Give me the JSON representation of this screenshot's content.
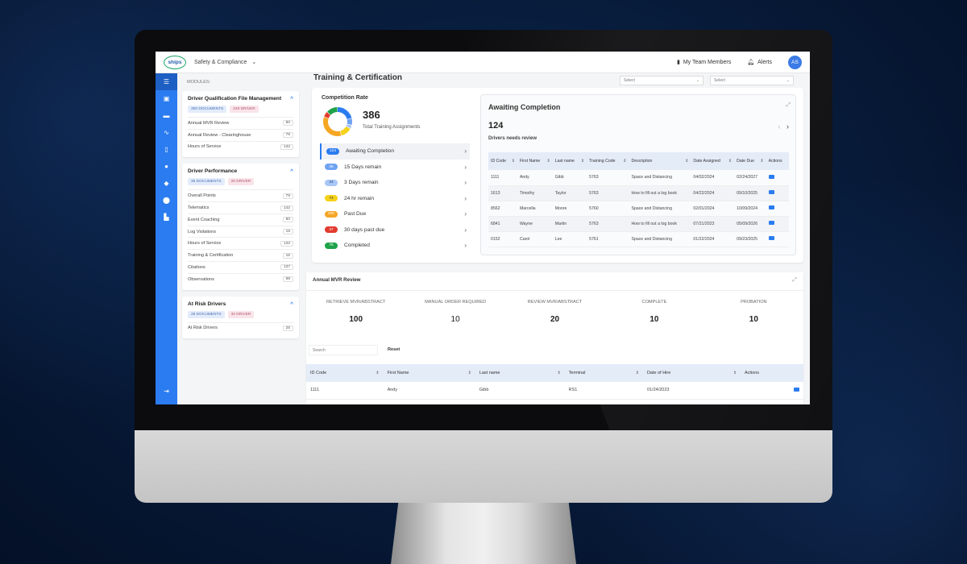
{
  "topbar": {
    "logo_text": "ships",
    "app_select": "Safety & Compliance",
    "my_team": "My Team Members",
    "alerts": "Alerts",
    "avatar": "AS"
  },
  "sidebar": {
    "modules_label": "MODULES:",
    "cards": [
      {
        "title": "Driver Qualification File Management",
        "docs": "300 DOCUMENTS",
        "drivers": "249 DRIVER",
        "items": [
          {
            "label": "Annual MVR Review",
            "count": "80"
          },
          {
            "label": "Annual Review - Clearinghouse",
            "count": "79"
          },
          {
            "label": "Hours of Service",
            "count": "132"
          }
        ]
      },
      {
        "title": "Driver Performance",
        "docs": "35 DOCUMENTS",
        "drivers": "20 DRIVER",
        "items": [
          {
            "label": "Overall Points",
            "count": "79"
          },
          {
            "label": "Telematics",
            "count": "142"
          },
          {
            "label": "Event Coaching",
            "count": "80"
          },
          {
            "label": "Log Violations",
            "count": "15"
          },
          {
            "label": "Hours of Service",
            "count": "132"
          },
          {
            "label": "Training & Certification",
            "count": "15"
          },
          {
            "label": "Citations",
            "count": "137"
          },
          {
            "label": "Observations",
            "count": "98"
          }
        ]
      },
      {
        "title": "At Risk Drivers",
        "docs": "28 DOCUMENTS",
        "drivers": "32 DRIVER",
        "items": [
          {
            "label": "At Risk Drivers",
            "count": "25"
          }
        ]
      }
    ]
  },
  "main": {
    "title": "Training & Certification",
    "select1": "Select",
    "select2": "Select",
    "competition_rate": "Competition Rate",
    "total_num": "386",
    "total_label": "Total Training Assignments",
    "statuses": [
      {
        "count": "124",
        "label": "Awaiting Completion",
        "color": "#2b7cf0",
        "text_color": "#ffffff"
      },
      {
        "count": "45",
        "label": "15 Days remain",
        "color": "#6fa3f2",
        "text_color": "#ffffff"
      },
      {
        "count": "24",
        "label": "3 Days remain",
        "color": "#a9c7f6",
        "text_color": "#1d3f7a"
      },
      {
        "count": "74",
        "label": "24 hr remain",
        "color": "#f5d21b",
        "text_color": "#333333"
      },
      {
        "count": "200",
        "label": "Past Due",
        "color": "#f5a623",
        "text_color": "#ffffff"
      },
      {
        "count": "37",
        "label": "30 days past due",
        "color": "#e23b2e",
        "text_color": "#ffffff"
      },
      {
        "count": "75",
        "label": "Completed",
        "color": "#1ea34a",
        "text_color": "#ffffff"
      }
    ],
    "awaiting": {
      "title": "Awaiting Completion",
      "count": "124",
      "subtitle": "Drivers needs review",
      "columns": [
        "ID Code",
        "First Name",
        "Last name",
        "Training Code",
        "Description",
        "Date Assigned",
        "Date Due",
        "Actions"
      ],
      "rows": [
        [
          "1111",
          "Andy",
          "Gibb",
          "5763",
          "Space and Distancing",
          "04/02/2024",
          "02/24/2027"
        ],
        [
          "1613",
          "Timothy",
          "Taylor",
          "5763",
          "How to fill out a log book",
          "04/22/2024",
          "09/10/2025"
        ],
        [
          "8562",
          "Marcella",
          "Moore",
          "5760",
          "Space and Distancing",
          "02/01/2024",
          "10/09/2024"
        ],
        [
          "6841",
          "Wayne",
          "Martin",
          "5763",
          "How to fill out a log book",
          "07/21/2023",
          "05/09/2026"
        ],
        [
          "0152",
          "Carol",
          "Lee",
          "5761",
          "Space and Distancing",
          "01/22/2024",
          "09/23/2025"
        ]
      ]
    },
    "mvr": {
      "title": "Annual MVR Review",
      "stats": [
        {
          "label": "RETRIEVE MVR/ABSTRACT",
          "value": "100",
          "bold": true
        },
        {
          "label": "MANUAL ORDER REQUIRED",
          "value": "10",
          "bold": false
        },
        {
          "label": "REVIEW MVR/ABSTRACT",
          "value": "20",
          "bold": true
        },
        {
          "label": "COMPLETE",
          "value": "10",
          "bold": true
        },
        {
          "label": "PROBATION",
          "value": "10",
          "bold": true
        }
      ],
      "search_placeholder": "Search",
      "reset": "Reset",
      "columns": [
        "ID Code",
        "First Name",
        "Last name",
        "Terminal",
        "Date of Hire",
        "Actions"
      ],
      "rows": [
        [
          "1111",
          "Andy",
          "Gibb",
          "RS1",
          "01/24/2023"
        ]
      ]
    }
  }
}
